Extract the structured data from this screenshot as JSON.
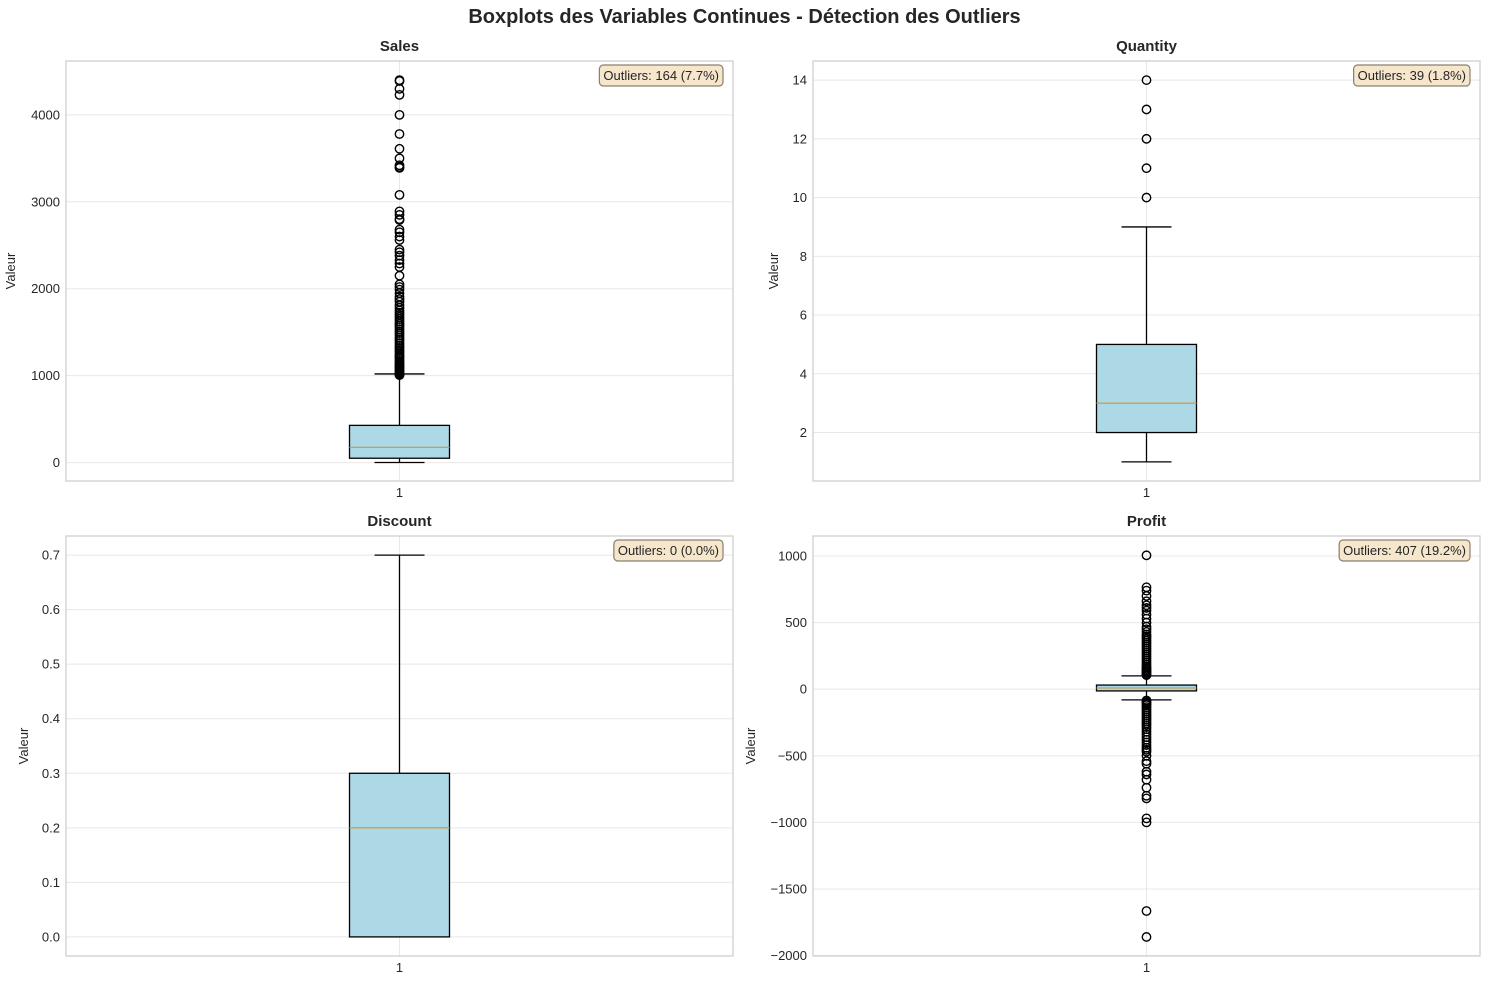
{
  "figure": {
    "suptitle": "Boxplots des Variables Continues - Détection des Outliers"
  },
  "colors": {
    "box_fill": "#add8e6",
    "median": "#c8a050",
    "grid": "#e8e8e8",
    "spine": "#cccccc",
    "annot_bg": "#f5e6cc",
    "annot_border": "#8a7f6e"
  },
  "chart_data": [
    {
      "type": "box",
      "title": "Sales",
      "ylabel": "Valeur",
      "xtick": "1",
      "ylim": [
        -212,
        4620
      ],
      "yticks": [
        0,
        1000,
        2000,
        3000,
        4000
      ],
      "ytick_labels": [
        "0",
        "1000",
        "2000",
        "3000",
        "4000"
      ],
      "annotation": "Outliers: 164 (7.7%)",
      "stats": {
        "whisker_low": 1,
        "q1": 50,
        "median": 175,
        "q3": 428,
        "whisker_high": 1020
      },
      "outliers": [
        1005,
        1010,
        1018,
        1025,
        1035,
        1050,
        1060,
        1075,
        1090,
        1100,
        1115,
        1130,
        1145,
        1160,
        1180,
        1200,
        1215,
        1230,
        1250,
        1270,
        1290,
        1310,
        1330,
        1350,
        1375,
        1400,
        1420,
        1440,
        1465,
        1490,
        1510,
        1535,
        1560,
        1580,
        1600,
        1625,
        1650,
        1675,
        1700,
        1725,
        1750,
        1780,
        1810,
        1850,
        1880,
        1910,
        1950,
        1990,
        2020,
        2050,
        2150,
        2250,
        2290,
        2330,
        2380,
        2420,
        2450,
        2560,
        2600,
        2650,
        2680,
        2790,
        2800,
        2850,
        2890,
        3080,
        3390,
        3400,
        3420,
        3500,
        3610,
        3780,
        4000,
        4230,
        4300,
        4390,
        4400
      ]
    },
    {
      "type": "box",
      "title": "Quantity",
      "ylabel": "Valeur",
      "xtick": "1",
      "ylim": [
        0.35,
        14.65
      ],
      "yticks": [
        2,
        4,
        6,
        8,
        10,
        12,
        14
      ],
      "ytick_labels": [
        "2",
        "4",
        "6",
        "8",
        "10",
        "12",
        "14"
      ],
      "annotation": "Outliers: 39 (1.8%)",
      "stats": {
        "whisker_low": 1,
        "q1": 2,
        "median": 3,
        "q3": 5,
        "whisker_high": 9
      },
      "outliers": [
        10,
        11,
        12,
        13,
        14
      ]
    },
    {
      "type": "box",
      "title": "Discount",
      "ylabel": "Valeur",
      "xtick": "1",
      "ylim": [
        -0.035,
        0.735
      ],
      "yticks": [
        0.0,
        0.1,
        0.2,
        0.3,
        0.4,
        0.5,
        0.6,
        0.7
      ],
      "ytick_labels": [
        "0.0",
        "0.1",
        "0.2",
        "0.3",
        "0.4",
        "0.5",
        "0.6",
        "0.7"
      ],
      "annotation": "Outliers: 0 (0.0%)",
      "stats": {
        "whisker_low": 0.0,
        "q1": 0.0,
        "median": 0.2,
        "q3": 0.3,
        "whisker_high": 0.7
      },
      "outliers": []
    },
    {
      "type": "box",
      "title": "Profit",
      "ylabel": "Valeur",
      "xtick": "1",
      "ylim": [
        -2003,
        1150
      ],
      "yticks": [
        -2000,
        -1500,
        -1000,
        -500,
        0,
        500,
        1000
      ],
      "ytick_labels": [
        "−2000",
        "−1500",
        "−1000",
        "−500",
        "0",
        "500",
        "1000"
      ],
      "annotation": "Outliers: 407 (19.2%)",
      "stats": {
        "whisker_low": -80,
        "q1": -13,
        "median": 9,
        "q3": 31,
        "whisker_high": 100
      },
      "outliers": [
        1005,
        765,
        740,
        700,
        660,
        630,
        610,
        590,
        560,
        530,
        500,
        470,
        450,
        430,
        410,
        395,
        380,
        365,
        350,
        335,
        320,
        305,
        290,
        275,
        260,
        245,
        230,
        215,
        200,
        185,
        170,
        160,
        150,
        140,
        130,
        120,
        110,
        105,
        -85,
        -90,
        -100,
        -110,
        -120,
        -135,
        -150,
        -165,
        -180,
        -195,
        -210,
        -225,
        -240,
        -255,
        -270,
        -285,
        -300,
        -320,
        -340,
        -360,
        -380,
        -400,
        -420,
        -440,
        -455,
        -470,
        -500,
        -540,
        -560,
        -620,
        -640,
        -680,
        -740,
        -800,
        -820,
        -970,
        -1000,
        -1665,
        -1860
      ]
    }
  ]
}
